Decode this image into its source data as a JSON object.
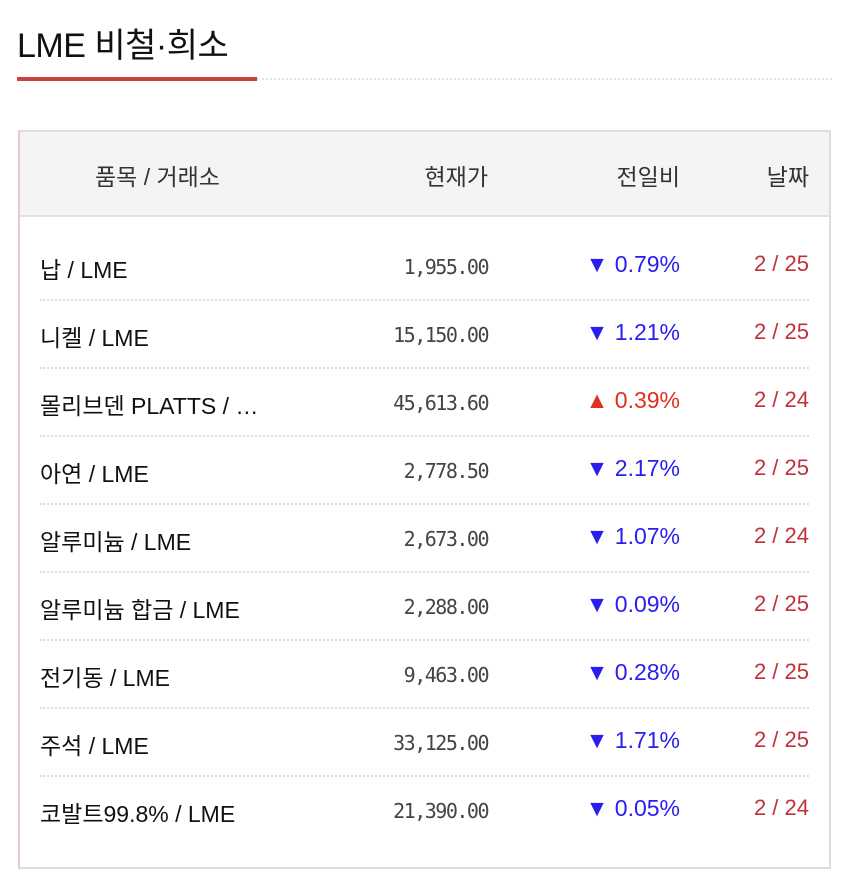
{
  "title": "LME 비철·희소",
  "header": {
    "name": "품목 / 거래소",
    "price": "현재가",
    "change": "전일비",
    "date": "날짜"
  },
  "colors": {
    "accent": "#c8423f",
    "down": "#2a1df0",
    "up": "#e0301e",
    "date": "#c0313a"
  },
  "rows": [
    {
      "name": "납 / LME",
      "price": "1,955.00",
      "dir": "down",
      "arrow": "▼",
      "change": "0.79%",
      "date": "2 / 25"
    },
    {
      "name": "니켈 / LME",
      "price": "15,150.00",
      "dir": "down",
      "arrow": "▼",
      "change": "1.21%",
      "date": "2 / 25"
    },
    {
      "name": "몰리브덴 PLATTS / …",
      "price": "45,613.60",
      "dir": "up",
      "arrow": "▲",
      "change": "0.39%",
      "date": "2 / 24"
    },
    {
      "name": "아연 / LME",
      "price": "2,778.50",
      "dir": "down",
      "arrow": "▼",
      "change": "2.17%",
      "date": "2 / 25"
    },
    {
      "name": "알루미늄 / LME",
      "price": "2,673.00",
      "dir": "down",
      "arrow": "▼",
      "change": "1.07%",
      "date": "2 / 24"
    },
    {
      "name": "알루미늄 합금 / LME",
      "price": "2,288.00",
      "dir": "down",
      "arrow": "▼",
      "change": "0.09%",
      "date": "2 / 25"
    },
    {
      "name": "전기동 / LME",
      "price": "9,463.00",
      "dir": "down",
      "arrow": "▼",
      "change": "0.28%",
      "date": "2 / 25"
    },
    {
      "name": "주석 / LME",
      "price": "33,125.00",
      "dir": "down",
      "arrow": "▼",
      "change": "1.71%",
      "date": "2 / 25"
    },
    {
      "name": "코발트99.8% / LME",
      "price": "21,390.00",
      "dir": "down",
      "arrow": "▼",
      "change": "0.05%",
      "date": "2 / 24"
    }
  ]
}
